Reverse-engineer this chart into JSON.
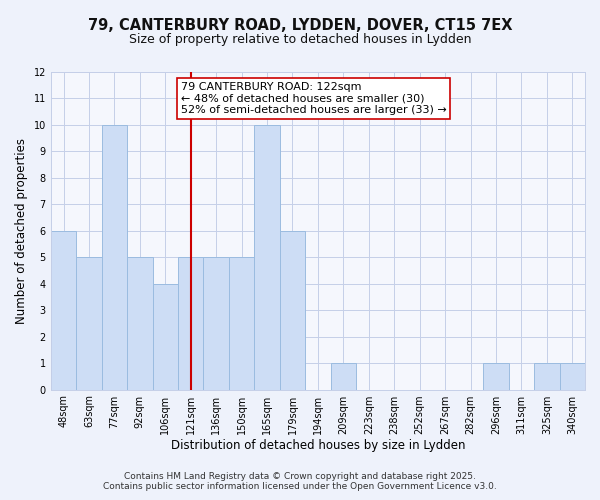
{
  "title": "79, CANTERBURY ROAD, LYDDEN, DOVER, CT15 7EX",
  "subtitle": "Size of property relative to detached houses in Lydden",
  "xlabel": "Distribution of detached houses by size in Lydden",
  "ylabel": "Number of detached properties",
  "bar_labels": [
    "48sqm",
    "63sqm",
    "77sqm",
    "92sqm",
    "106sqm",
    "121sqm",
    "136sqm",
    "150sqm",
    "165sqm",
    "179sqm",
    "194sqm",
    "209sqm",
    "223sqm",
    "238sqm",
    "252sqm",
    "267sqm",
    "282sqm",
    "296sqm",
    "311sqm",
    "325sqm",
    "340sqm"
  ],
  "bar_values": [
    6,
    5,
    10,
    5,
    4,
    5,
    5,
    5,
    10,
    6,
    0,
    1,
    0,
    0,
    0,
    0,
    0,
    1,
    0,
    1,
    1
  ],
  "bar_color": "#cdddf5",
  "bar_edge_color": "#9bbce0",
  "vline_index": 5,
  "highlight_line_color": "#cc0000",
  "annotation_text": "79 CANTERBURY ROAD: 122sqm\n← 48% of detached houses are smaller (30)\n52% of semi-detached houses are larger (33) →",
  "annotation_box_color": "#ffffff",
  "annotation_box_edge": "#cc0000",
  "ylim_max": 12,
  "yticks": [
    0,
    1,
    2,
    3,
    4,
    5,
    6,
    7,
    8,
    9,
    10,
    11,
    12
  ],
  "footer1": "Contains HM Land Registry data © Crown copyright and database right 2025.",
  "footer2": "Contains public sector information licensed under the Open Government Licence v3.0.",
  "bg_color": "#eef2fb",
  "plot_bg_color": "#f5f7fd",
  "grid_color": "#c5cfe8",
  "title_fontsize": 10.5,
  "subtitle_fontsize": 9,
  "axis_label_fontsize": 8.5,
  "tick_fontsize": 7,
  "annotation_fontsize": 8,
  "footer_fontsize": 6.5
}
